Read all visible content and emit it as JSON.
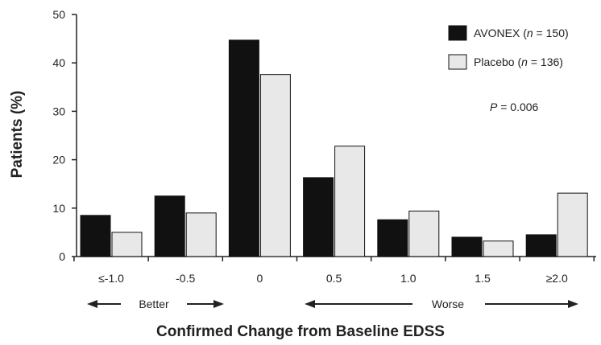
{
  "chart_data": {
    "type": "bar",
    "categories": [
      "≤-1.0",
      "-0.5",
      "0",
      "0.5",
      "1.0",
      "1.5",
      "≥2.0"
    ],
    "series": [
      {
        "name": "AVONEX",
        "n_label": "n",
        "n_text": " = 150",
        "color": "#111111",
        "values": [
          8.5,
          12.5,
          44.7,
          16.3,
          7.6,
          4.0,
          4.5
        ]
      },
      {
        "name": "Placebo",
        "n_label": "n",
        "n_text": " = 136",
        "color": "#e8e8e8",
        "values": [
          5.0,
          9.0,
          37.6,
          22.8,
          9.4,
          3.2,
          13.1
        ]
      }
    ],
    "ylabel": "Patients (%)",
    "xlabel": "Confirmed Change from Baseline EDSS",
    "ylim": [
      0,
      50
    ],
    "yticks": [
      0,
      10,
      20,
      30,
      40,
      50
    ],
    "grid": false,
    "legend_position": "top-right",
    "annotation": {
      "p_label": "P",
      "p_value": " = 0.006"
    },
    "direction_labels": {
      "better": "Better",
      "worse": "Worse"
    }
  }
}
